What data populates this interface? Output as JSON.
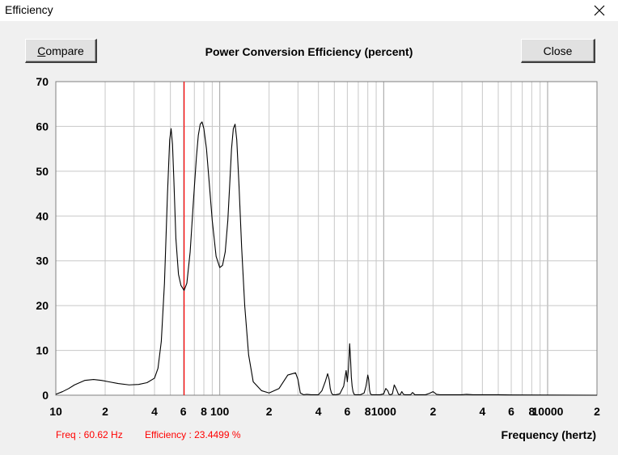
{
  "window": {
    "title": "Efficiency"
  },
  "buttons": {
    "compare_first": "C",
    "compare_rest": "ompare",
    "close": "Close"
  },
  "status": {
    "freq": "Freq : 60.62 Hz",
    "efficiency": "Efficiency : 23.4499 %"
  },
  "colors": {
    "curve": "#000000",
    "cursor": "#ff0000",
    "grid": "#c8c8c8",
    "grid_major": "#a0a0a0",
    "status_text": "#ff0000"
  },
  "chart_data": {
    "type": "line",
    "title": "Power Conversion Efficiency (percent)",
    "xlabel": "Frequency (hertz)",
    "ylabel": "",
    "xscale": "log",
    "xlim": [
      10,
      20000
    ],
    "ylim": [
      0,
      70
    ],
    "grid": true,
    "y_ticks": [
      "0",
      "10",
      "20",
      "30",
      "40",
      "50",
      "60",
      "70"
    ],
    "y_tick_values": [
      0,
      10,
      20,
      30,
      40,
      50,
      60,
      70
    ],
    "x_ticks": [
      {
        "v": 10,
        "t": "10"
      },
      {
        "v": 20,
        "t": "2"
      },
      {
        "v": 40,
        "t": "4"
      },
      {
        "v": 60,
        "t": "6"
      },
      {
        "v": 80,
        "t": "8"
      },
      {
        "v": 100,
        "t": "100"
      },
      {
        "v": 200,
        "t": "2"
      },
      {
        "v": 400,
        "t": "4"
      },
      {
        "v": 600,
        "t": "6"
      },
      {
        "v": 800,
        "t": "8"
      },
      {
        "v": 1000,
        "t": "1000"
      },
      {
        "v": 2000,
        "t": "2"
      },
      {
        "v": 4000,
        "t": "4"
      },
      {
        "v": 6000,
        "t": "6"
      },
      {
        "v": 8000,
        "t": "8"
      },
      {
        "v": 10000,
        "t": "10000"
      },
      {
        "v": 20000,
        "t": "2"
      }
    ],
    "cursor_freq": 60.62,
    "cursor_value": 23.4499,
    "series": [
      {
        "x": [
          10,
          11,
          12,
          13,
          15,
          17,
          19,
          21,
          24,
          28,
          32,
          36,
          40,
          42,
          44,
          46,
          48,
          49.5,
          50.5,
          51.5,
          52.5,
          54,
          56,
          58,
          60.6,
          63,
          66,
          69,
          72,
          74,
          76,
          78,
          80,
          83,
          86,
          90,
          95,
          100,
          104,
          108,
          112,
          115,
          118,
          121,
          124,
          127,
          131,
          136,
          142,
          150,
          160,
          180,
          200,
          230,
          260,
          290,
          300,
          310,
          325,
          340,
          360,
          400,
          420,
          440,
          455,
          465,
          472,
          480,
          490,
          510,
          540,
          570,
          590,
          600,
          610,
          620,
          628,
          635,
          642,
          650,
          660,
          670,
          690,
          720,
          760,
          780,
          800,
          810,
          820,
          830,
          845,
          860,
          900,
          950,
          1000,
          1030,
          1060,
          1080,
          1100,
          1130,
          1160,
          1200,
          1230,
          1260,
          1290,
          1320,
          1350,
          1400,
          1460,
          1500,
          1550,
          1600,
          1700,
          1800,
          1900,
          2000,
          2100,
          2200,
          2400,
          2700,
          3000,
          3200,
          3500,
          4000,
          5000,
          6000,
          20000
        ],
        "y": [
          0.2,
          0.8,
          1.5,
          2.3,
          3.3,
          3.5,
          3.3,
          3.0,
          2.6,
          2.3,
          2.4,
          2.8,
          3.8,
          6,
          12,
          25,
          45,
          57,
          59.5,
          56,
          48,
          35,
          27,
          24.5,
          23.4,
          25,
          32,
          43,
          53,
          58,
          60.5,
          61,
          59.5,
          55,
          48,
          39,
          31,
          28.5,
          29,
          32,
          39,
          47,
          55,
          59.5,
          60.5,
          57,
          47,
          33,
          20,
          9,
          3,
          1,
          0.5,
          1.5,
          4.5,
          5,
          3.5,
          0.5,
          0.1,
          0.2,
          0.1,
          0.1,
          1,
          3,
          4.8,
          3.5,
          1.5,
          0.5,
          0.1,
          0.1,
          0.3,
          2,
          5.5,
          3,
          6,
          11.5,
          8,
          4,
          2,
          0.8,
          0.2,
          0.1,
          0.1,
          0.1,
          0.5,
          2,
          4.5,
          3.5,
          1.2,
          0.3,
          0.1,
          0.1,
          0.1,
          0.1,
          0.3,
          1.5,
          1.0,
          0.2,
          0.1,
          0.3,
          2.3,
          1.2,
          0.2,
          0.1,
          0.8,
          0.2,
          0.1,
          0.1,
          0.1,
          0.6,
          0.1,
          0.1,
          0.1,
          0.1,
          0.4,
          0.8,
          0.2,
          0.1,
          0.1,
          0.1,
          0.1,
          0.2,
          0.1,
          0.1,
          0.1,
          0.05,
          0
        ]
      }
    ]
  }
}
